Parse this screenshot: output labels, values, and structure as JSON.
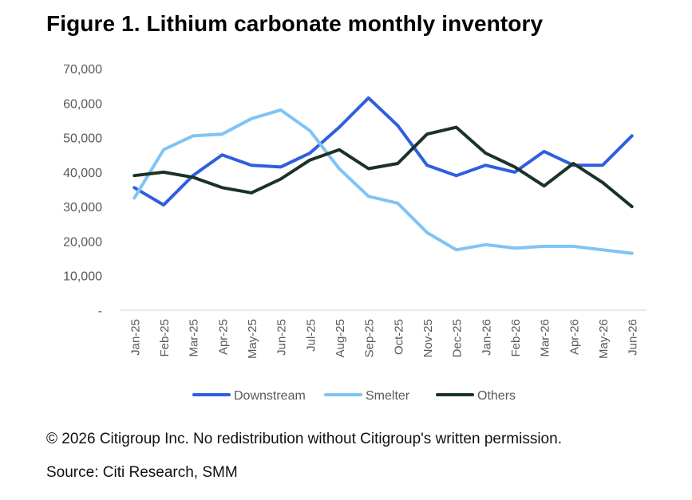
{
  "title": "Figure 1. Lithium carbonate monthly inventory",
  "copyright": "© 2026 Citigroup Inc. No redistribution without Citigroup's written permission.",
  "source": "Source: Citi Research, SMM",
  "chart_data": {
    "type": "line",
    "categories": [
      "Jan-25",
      "Feb-25",
      "Mar-25",
      "Apr-25",
      "May-25",
      "Jun-25",
      "Jul-25",
      "Aug-25",
      "Sep-25",
      "Oct-25",
      "Nov-25",
      "Dec-25",
      "Jan-26",
      "Feb-26",
      "Mar-26",
      "Apr-26",
      "May-26",
      "Jun-26"
    ],
    "y_ticks": [
      {
        "value": 0,
        "label": "-"
      },
      {
        "value": 10000,
        "label": "10,000"
      },
      {
        "value": 20000,
        "label": "20,000"
      },
      {
        "value": 30000,
        "label": "30,000"
      },
      {
        "value": 40000,
        "label": "40,000"
      },
      {
        "value": 50000,
        "label": "50,000"
      },
      {
        "value": 60000,
        "label": "60,000"
      },
      {
        "value": 70000,
        "label": "70,000"
      }
    ],
    "ylim": [
      0,
      70000
    ],
    "grid": false,
    "legend_position": "bottom",
    "series": [
      {
        "name": "Downstream",
        "color": "#2f5fdc",
        "values": [
          35500,
          30500,
          39000,
          45000,
          42000,
          41500,
          45500,
          53000,
          61500,
          53500,
          42000,
          39000,
          42000,
          40000,
          46000,
          42000,
          42000,
          50500
        ]
      },
      {
        "name": "Smelter",
        "color": "#7fc4f5",
        "values": [
          32500,
          46500,
          50500,
          51000,
          55500,
          58000,
          52000,
          41000,
          33000,
          31000,
          22500,
          17500,
          19000,
          18000,
          18500,
          18500,
          17500,
          16500
        ]
      },
      {
        "name": "Others",
        "color": "#1a3324",
        "values": [
          39000,
          40000,
          38500,
          35500,
          34000,
          38000,
          43500,
          46500,
          41000,
          42500,
          51000,
          53000,
          45500,
          41500,
          36000,
          42500,
          37000,
          30000
        ]
      }
    ]
  }
}
